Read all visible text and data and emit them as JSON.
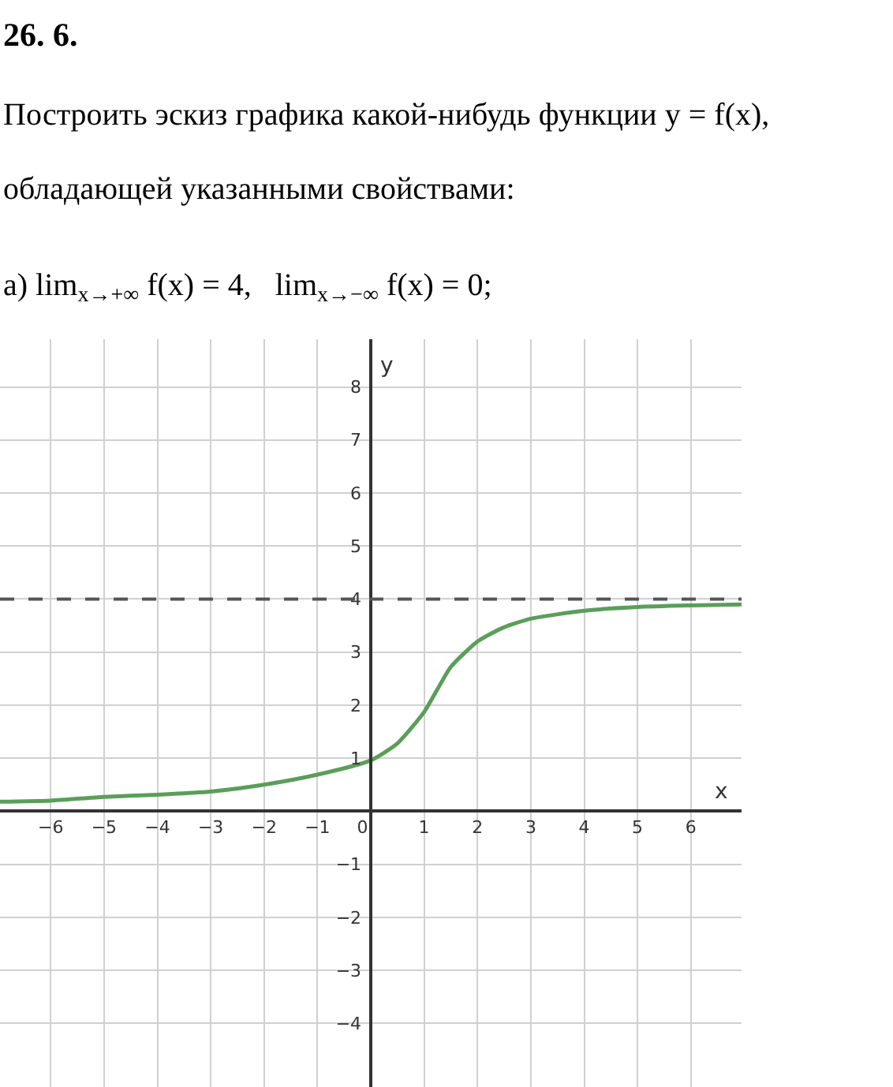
{
  "chart_data": {
    "type": "line",
    "title": "26. 6.",
    "subtitle": "Построить эскиз графика какой-нибудь функции y = f(x), обладающей указанными свойствами:",
    "annotations": [
      "а) lim$_{x→+∞}$ f(x) = 4,   lim$_{x→−∞}$ f(x) = 0;"
    ],
    "xlabel": "x",
    "ylabel": "y",
    "x": [
      -6.95,
      -6,
      -5,
      -4,
      -3,
      -2,
      -1,
      0,
      0.5,
      1,
      1.25,
      1.5,
      2,
      2.5,
      3,
      4,
      5,
      6,
      6.95
    ],
    "series": [
      {
        "color": "#5a9e5a",
        "values": [
          0.18,
          0.2,
          0.27,
          0.31,
          0.37,
          0.5,
          0.69,
          0.96,
          1.28,
          1.87,
          2.3,
          2.72,
          3.2,
          3.47,
          3.63,
          3.78,
          3.85,
          3.88,
          3.9
        ]
      }
    ],
    "xlim": [
      -6.95,
      6.95
    ],
    "ylim": [
      -5.2,
      8.9
    ],
    "xticks": [
      -6,
      -5,
      -4,
      -3,
      -2,
      -1,
      0,
      1,
      2,
      3,
      4,
      5,
      6
    ],
    "yticks": [
      -4,
      -3,
      -2,
      -1,
      1,
      2,
      3,
      4,
      5,
      6,
      7,
      8
    ],
    "ref_lines": [
      {
        "axis": "y",
        "value": 4,
        "color": "#555555",
        "line_style": "dashed"
      }
    ],
    "grid": true,
    "marker": "none",
    "line_style": "solid"
  }
}
